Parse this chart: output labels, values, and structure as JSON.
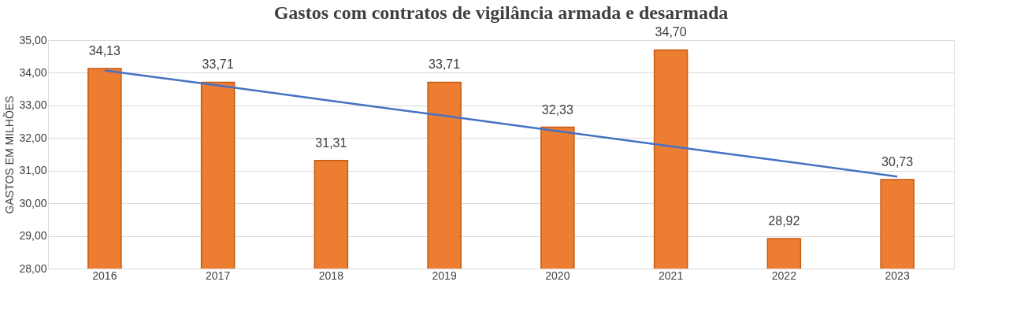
{
  "chart_data": {
    "type": "bar",
    "title": "Gastos com contratos de vigilância armada e desarmada",
    "ylabel": "GASTOS EM MILHÕES",
    "categories": [
      "2016",
      "2017",
      "2018",
      "2019",
      "2020",
      "2021",
      "2022",
      "2023"
    ],
    "series": [
      {
        "color": "#ed7d31",
        "values": [
          34.13,
          33.71,
          31.31,
          33.71,
          32.33,
          34.7,
          28.92,
          30.73
        ],
        "value_labels": [
          "34,13",
          "33,71",
          "31,31",
          "33,71",
          "32,33",
          "34,70",
          "28,92",
          "30,73"
        ]
      },
      {
        "type": "line",
        "color": "#4472c4",
        "values": [
          34.07,
          33.61,
          33.14,
          32.68,
          32.21,
          31.75,
          31.29,
          30.82
        ]
      }
    ],
    "ylim": [
      28,
      35
    ],
    "yticks": [
      {
        "value": 28,
        "label": "28,00"
      },
      {
        "value": 29,
        "label": "29,00"
      },
      {
        "value": 30,
        "label": "30,00"
      },
      {
        "value": 31,
        "label": "31,00"
      },
      {
        "value": 32,
        "label": "32,00"
      },
      {
        "value": 33,
        "label": "33,00"
      },
      {
        "value": 34,
        "label": "34,00"
      },
      {
        "value": 35,
        "label": "35,00"
      }
    ],
    "grid": "y"
  }
}
